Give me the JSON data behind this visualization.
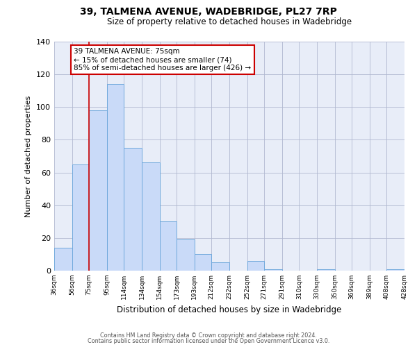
{
  "title": "39, TALMENA AVENUE, WADEBRIDGE, PL27 7RP",
  "subtitle": "Size of property relative to detached houses in Wadebridge",
  "xlabel": "Distribution of detached houses by size in Wadebridge",
  "ylabel": "Number of detached properties",
  "bar_left_edges": [
    36,
    56,
    75,
    95,
    114,
    134,
    154,
    173,
    193,
    212,
    232,
    252,
    271,
    291,
    310,
    330,
    350,
    369,
    389,
    408
  ],
  "bar_widths": [
    20,
    19,
    20,
    19,
    20,
    20,
    19,
    20,
    19,
    20,
    20,
    19,
    20,
    19,
    19,
    20,
    19,
    20,
    19,
    20
  ],
  "bar_heights": [
    14,
    65,
    98,
    114,
    75,
    66,
    30,
    19,
    10,
    5,
    0,
    6,
    1,
    0,
    0,
    1,
    0,
    0,
    0,
    1
  ],
  "bar_color": "#c9daf8",
  "bar_edge_color": "#6fa8dc",
  "tick_labels": [
    "36sqm",
    "56sqm",
    "75sqm",
    "95sqm",
    "114sqm",
    "134sqm",
    "154sqm",
    "173sqm",
    "193sqm",
    "212sqm",
    "232sqm",
    "252sqm",
    "271sqm",
    "291sqm",
    "310sqm",
    "330sqm",
    "350sqm",
    "369sqm",
    "389sqm",
    "408sqm",
    "428sqm"
  ],
  "vline_x": 75,
  "vline_color": "#cc0000",
  "annotation_line1": "39 TALMENA AVENUE: 75sqm",
  "annotation_line2": "← 15% of detached houses are smaller (74)",
  "annotation_line3": "85% of semi-detached houses are larger (426) →",
  "annotation_box_color": "#ffffff",
  "annotation_border_color": "#cc0000",
  "ylim": [
    0,
    140
  ],
  "yticks": [
    0,
    20,
    40,
    60,
    80,
    100,
    120,
    140
  ],
  "footer1": "Contains HM Land Registry data © Crown copyright and database right 2024.",
  "footer2": "Contains public sector information licensed under the Open Government Licence v3.0.",
  "bg_color": "#ffffff",
  "grid_color": "#b0b8d0",
  "plot_bg_color": "#e8edf8"
}
